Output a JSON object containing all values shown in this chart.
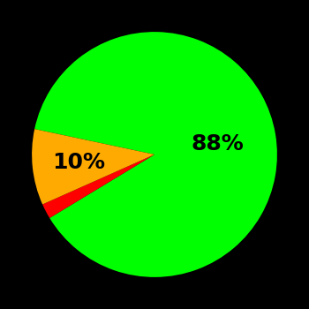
{
  "slices": [
    88,
    2,
    10
  ],
  "colors": [
    "#00ff00",
    "#ff0000",
    "#ffaa00"
  ],
  "labels": [
    "88%",
    "",
    "10%"
  ],
  "label_distances": [
    0.55,
    0,
    0.6
  ],
  "background_color": "#000000",
  "label_fontsize": 18,
  "label_fontweight": "bold",
  "startangle": 168,
  "figsize": [
    3.5,
    3.5
  ],
  "dpi": 100
}
